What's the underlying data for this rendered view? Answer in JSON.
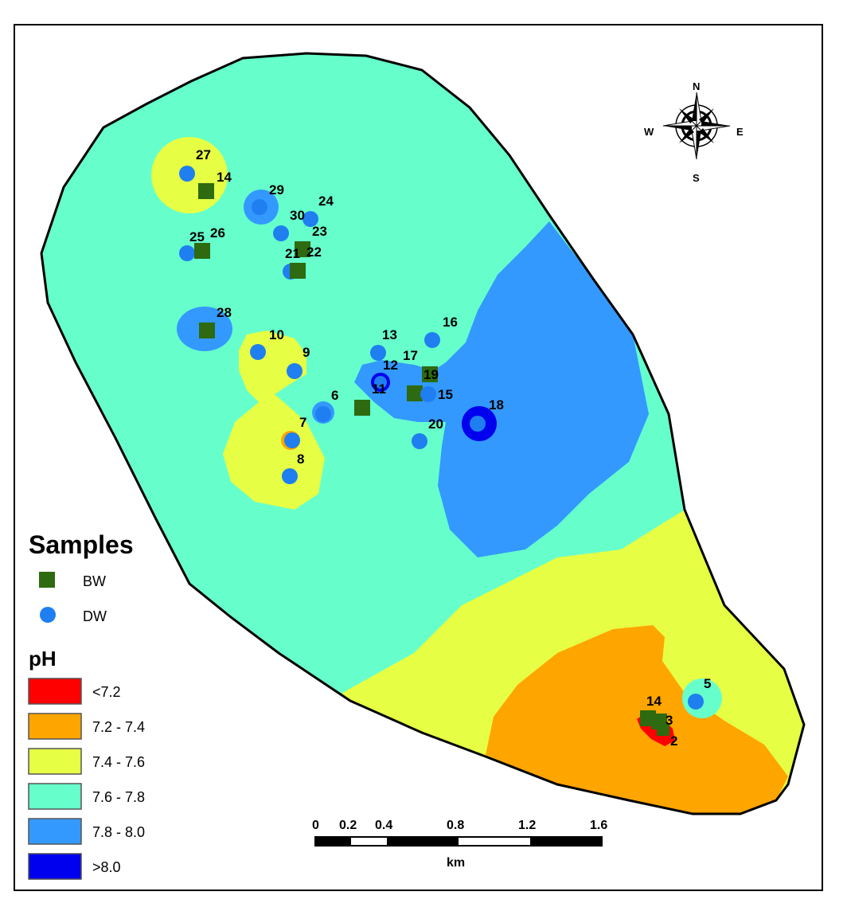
{
  "colors": {
    "ph_lt_7_2": "#ff0000",
    "ph_7_2_7_4": "#ffa500",
    "ph_7_4_7_6": "#e6ff44",
    "ph_7_6_7_8": "#66ffcc",
    "ph_7_8_8_0": "#3399ff",
    "ph_gt_8_0": "#0000ee",
    "bw_marker": "#2d6a10",
    "dw_marker": "#1f7ff0"
  },
  "compass": {
    "north": "N",
    "south": "S",
    "east": "E",
    "west": "W"
  },
  "legend": {
    "samples_title": "Samples",
    "sample_types": [
      {
        "label": "BW",
        "icon": "green-square-icon"
      },
      {
        "label": "DW",
        "icon": "blue-circle-icon"
      }
    ],
    "ph_title": "pH",
    "ph_classes": [
      {
        "label": "<7.2",
        "color": "#ff0000"
      },
      {
        "label": "7.2 - 7.4",
        "color": "#ffa500"
      },
      {
        "label": "7.4 - 7.6",
        "color": "#e6ff44"
      },
      {
        "label": "7.6 - 7.8",
        "color": "#66ffcc"
      },
      {
        "label": "7.8 - 8.0",
        "color": "#3399ff"
      },
      {
        "label": ">8.0",
        "color": "#0000ee"
      }
    ]
  },
  "scale_bar": {
    "ticks": [
      "0",
      "0.2",
      "0.4",
      "0.8",
      "1.2",
      "1.6"
    ],
    "unit": "km"
  },
  "sample_labels": [
    "27",
    "14",
    "29",
    "24",
    "30",
    "23",
    "25",
    "26",
    "21",
    "22",
    "28",
    "10",
    "9",
    "13",
    "16",
    "17",
    "12",
    "19",
    "11",
    "15",
    "6",
    "7",
    "18",
    "20",
    "8",
    "5",
    "14",
    "3",
    "2"
  ]
}
